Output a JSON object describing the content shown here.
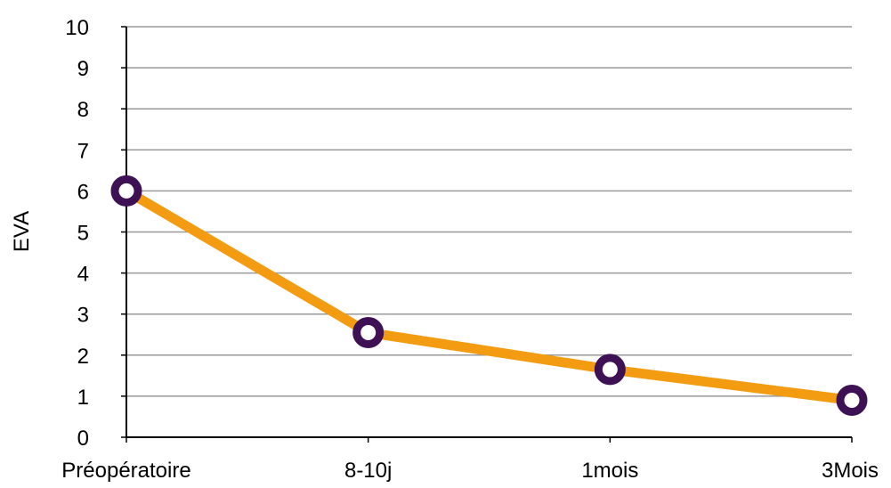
{
  "chart_data": {
    "type": "line",
    "title": "",
    "xlabel": "",
    "ylabel": "EVA",
    "categories": [
      "Préopératoire",
      "8-10j",
      "1mois",
      "3Mois"
    ],
    "series": [
      {
        "values": [
          6,
          2.55,
          1.65,
          0.9
        ]
      }
    ],
    "ylim": [
      0,
      10
    ],
    "yticks": [
      0,
      1,
      2,
      3,
      4,
      5,
      6,
      7,
      8,
      9,
      10
    ],
    "grid": true,
    "legend": "none",
    "colors": {
      "line": "#f39c12",
      "marker_stroke": "#3d1154",
      "marker_fill": "#ffffff",
      "grid": "#9a9a9a",
      "axis": "#000000"
    }
  }
}
